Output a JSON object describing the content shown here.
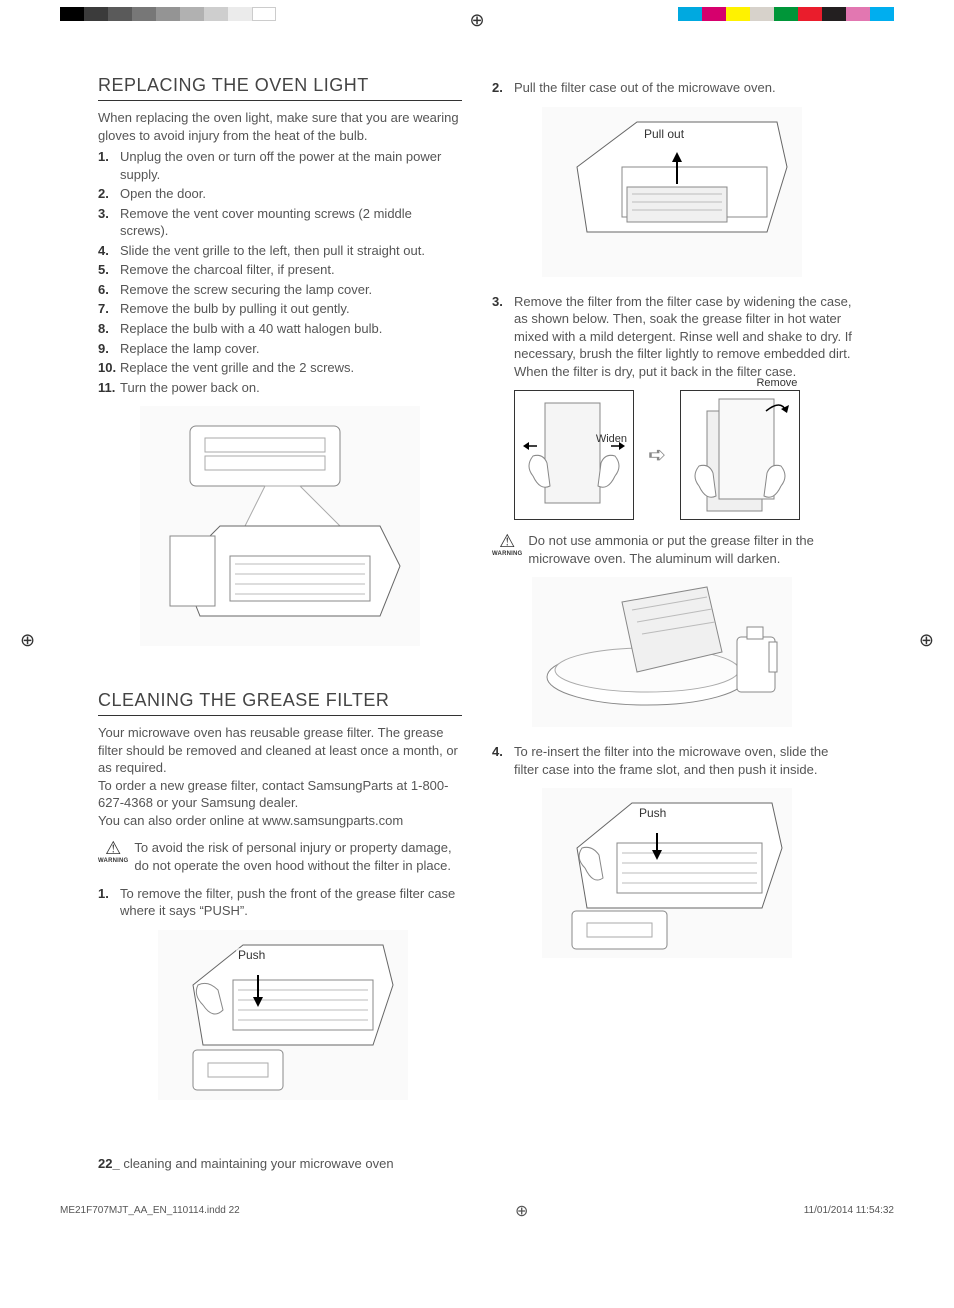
{
  "print_marks": {
    "left_swatches": [
      "#000000",
      "#3b3b3b",
      "#5a5a5a",
      "#777777",
      "#949494",
      "#b1b1b1",
      "#cecece",
      "#ebebeb",
      "#ffffff"
    ],
    "right_swatches": [
      "#00a9e0",
      "#d6006d",
      "#fff200",
      "#d7d2cb",
      "#009639",
      "#ea1d2c",
      "#231f20",
      "#e277b1",
      "#00aeef"
    ],
    "reg_glyph": "⊕"
  },
  "left": {
    "h1": "REPLACING THE OVEN LIGHT",
    "intro": "When replacing the oven light, make sure that you are wearing gloves to avoid injury from the heat of the bulb.",
    "steps": [
      "Unplug the oven or turn off the power at the main power supply.",
      "Open the door.",
      "Remove the vent cover mounting screws (2 middle screws).",
      "Slide the vent grille to the left, then pull it straight out.",
      "Remove the charcoal filter, if present.",
      "Remove the screw securing the lamp cover.",
      "Remove the bulb by pulling it out gently.",
      "Replace the bulb with a 40 watt halogen bulb.",
      "Replace the lamp cover.",
      "Replace the vent grille and the 2 screws.",
      "Turn the power back on."
    ],
    "h2": "CLEANING THE GREASE FILTER",
    "p1": "Your microwave oven has reusable grease filter. The grease filter should be removed and cleaned at least once a month, or as required.",
    "p2": "To order a new grease filter, contact SamsungParts at 1-800-627-4368 or your Samsung dealer.",
    "p3": "You can also order online at www.samsungparts.com",
    "warning1": "To avoid the risk of personal injury or property damage, do not operate the oven hood without the filter in place.",
    "step1": "To remove the filter, push the front of the grease filter case where it says “PUSH”.",
    "fig_push": "Push"
  },
  "right": {
    "step2": "Pull the filter case out of the microwave oven.",
    "fig_pullout": "Pull out",
    "step3": "Remove the filter from the filter case by widening the case, as shown below. Then, soak the grease filter in hot water mixed with a mild detergent. Rinse well and shake to dry. If necessary, brush the filter lightly to remove embedded dirt. When the filter is dry, put it back in the filter case.",
    "label_widen": "Widen",
    "label_remove": "Remove",
    "warning2": "Do not use ammonia or put the grease filter in the microwave oven. The aluminum will darken.",
    "step4": "To re-insert the filter into the microwave oven, slide the filter case into the frame slot, and then push it inside.",
    "fig_push2": "Push"
  },
  "warning_label": "WARNING",
  "footer": {
    "page_num": "22_",
    "page_title": " cleaning and maintaining your microwave oven"
  },
  "print_footer": {
    "file": "ME21F707MJT_AA_EN_110114.indd   22",
    "datetime": "11/01/2014   11:54:32"
  },
  "colors": {
    "text": "#555555",
    "heading": "#444444",
    "rule": "#333333",
    "figure_bg": "#fafafa"
  }
}
